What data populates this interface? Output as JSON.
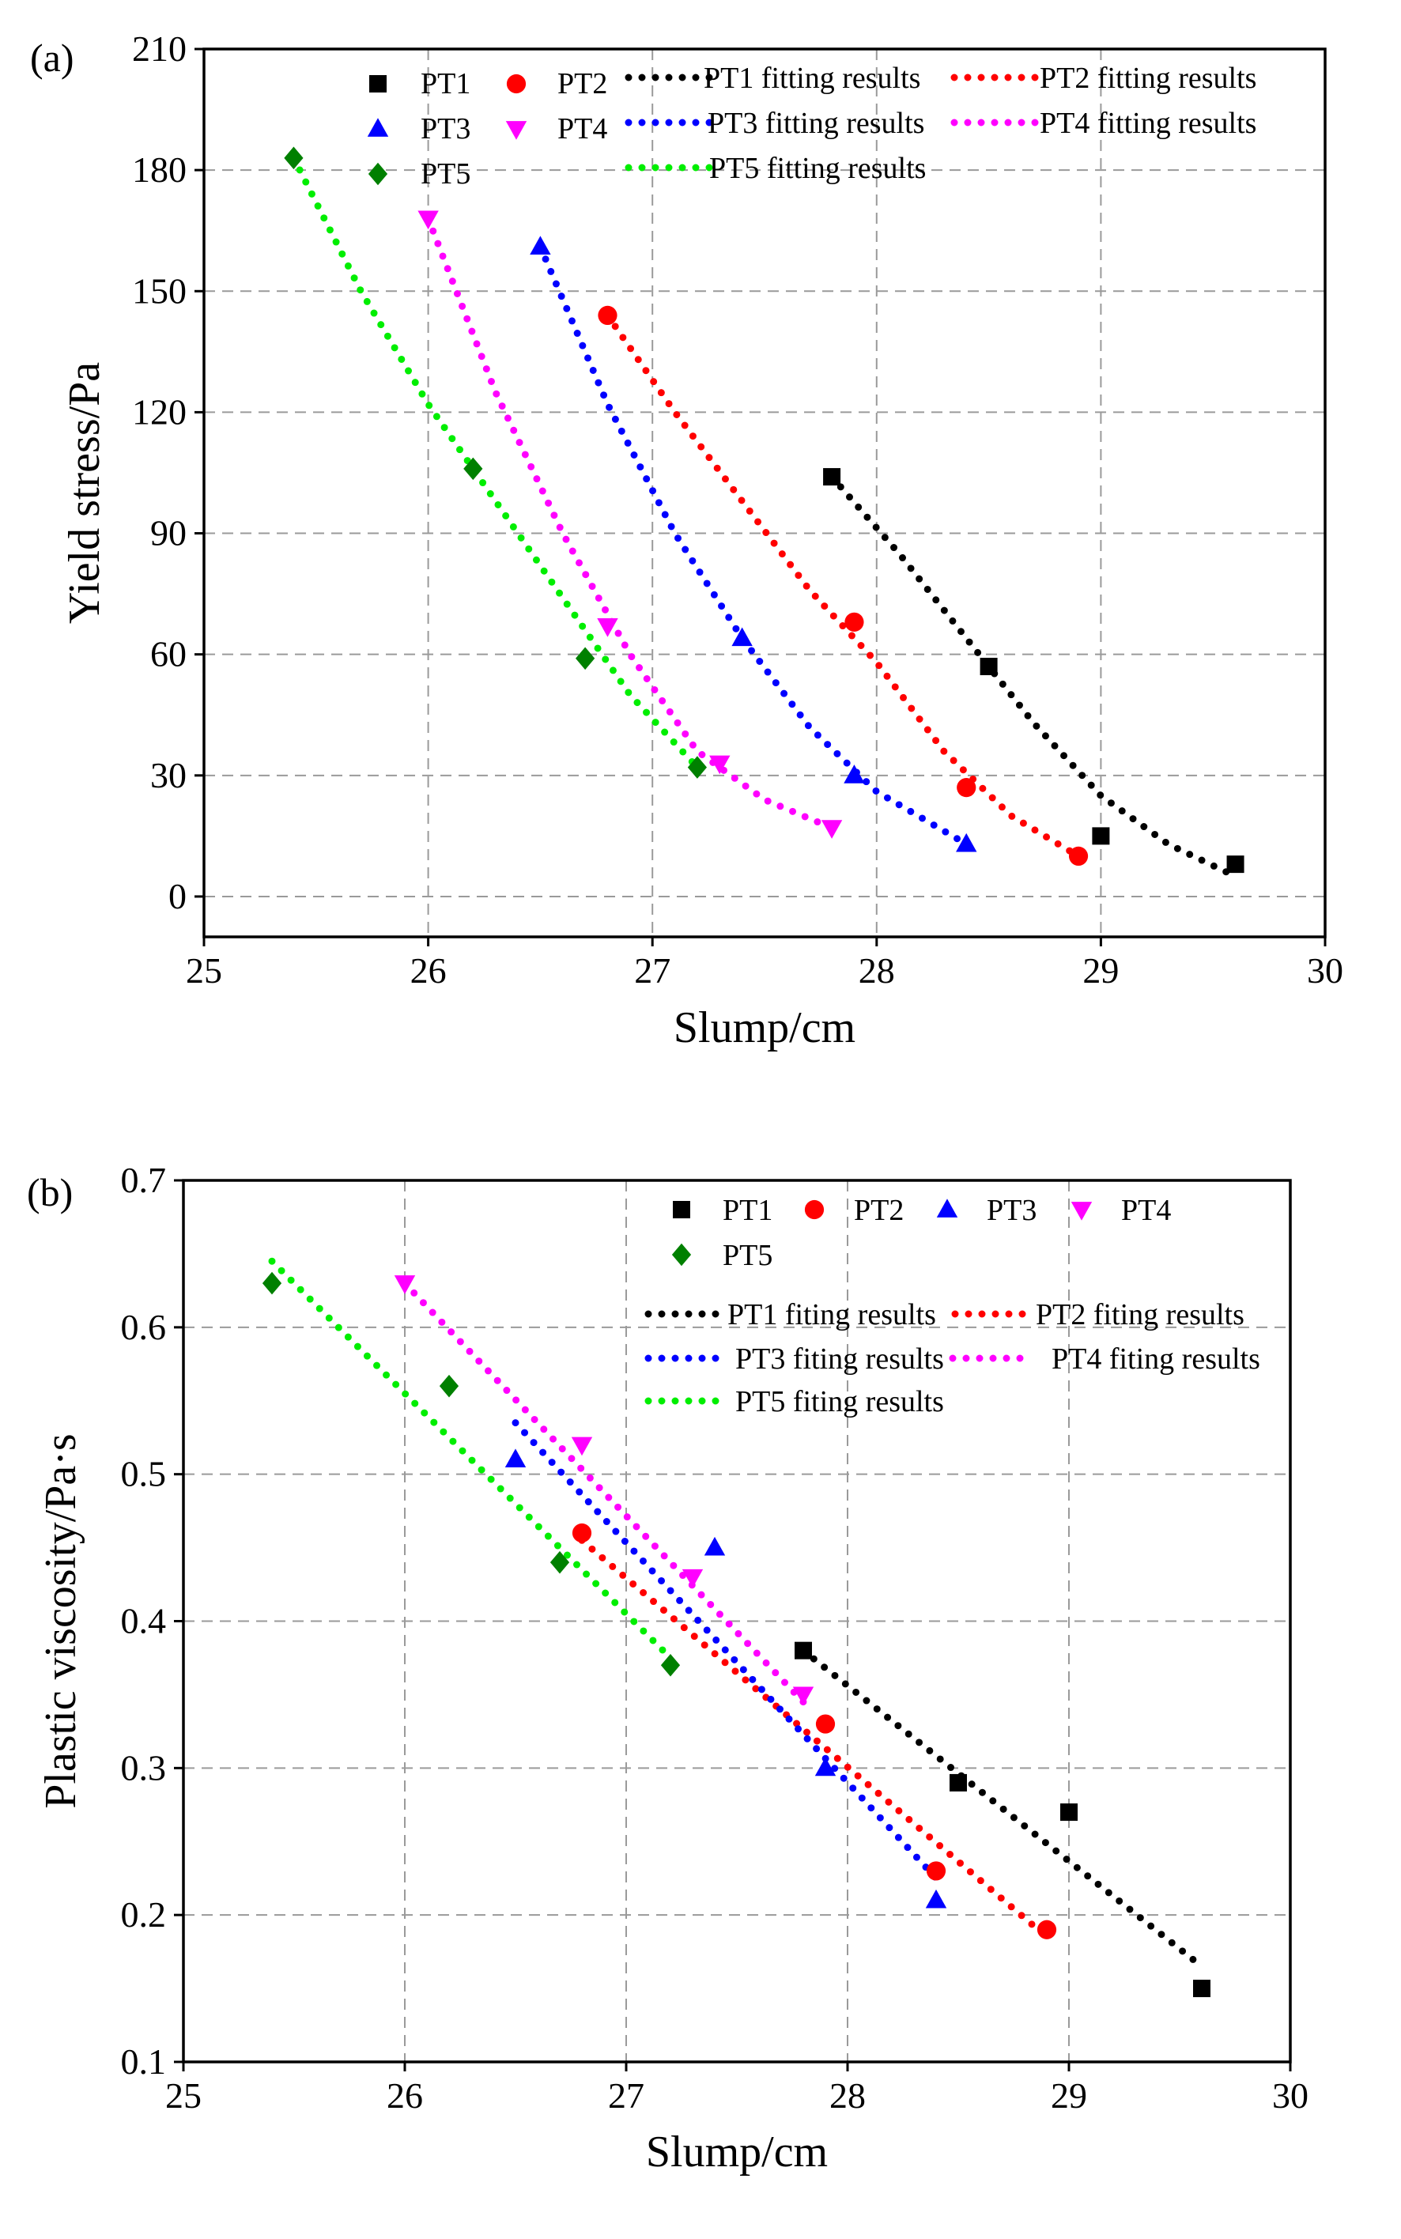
{
  "chart_data": [
    {
      "type": "scatter",
      "panel_label": "(a)",
      "xlabel": "Slump/cm",
      "ylabel": "Yield stress/Pa",
      "xlim": [
        25,
        30
      ],
      "ylim": [
        -10,
        210
      ],
      "xticks": [
        "25",
        "26",
        "27",
        "28",
        "29",
        "30"
      ],
      "yticks": [
        "0",
        "30",
        "60",
        "90",
        "120",
        "150",
        "180",
        "210"
      ],
      "grid": true,
      "series": [
        {
          "name": "PT1",
          "color": "#000000",
          "marker": "square",
          "x": [
            27.8,
            28.5,
            29.0,
            29.6
          ],
          "y": [
            104,
            57,
            15,
            8
          ]
        },
        {
          "name": "PT2",
          "color": "#ff0000",
          "marker": "circle",
          "x": [
            26.8,
            27.9,
            28.4,
            28.9
          ],
          "y": [
            144,
            68,
            27,
            10
          ]
        },
        {
          "name": "PT3",
          "color": "#0000ff",
          "marker": "triangle-up",
          "x": [
            26.5,
            27.4,
            27.9,
            28.4
          ],
          "y": [
            161,
            64,
            30,
            13
          ]
        },
        {
          "name": "PT4",
          "color": "#ff00ff",
          "marker": "triangle-down",
          "x": [
            26.0,
            26.8,
            27.3,
            27.8
          ],
          "y": [
            168,
            67,
            33,
            17
          ]
        },
        {
          "name": "PT5",
          "color": "#008000",
          "marker": "diamond",
          "x": [
            25.4,
            26.2,
            26.7,
            27.2
          ],
          "y": [
            183,
            106,
            59,
            32
          ]
        }
      ],
      "fits": [
        {
          "name": "PT1 fitting results",
          "color": "#000000",
          "x": [
            27.8,
            28.1,
            28.4,
            28.7,
            29.0,
            29.3,
            29.6
          ],
          "y": [
            104,
            85,
            64,
            43,
            25,
            13,
            5
          ]
        },
        {
          "name": "PT2 fitting results",
          "color": "#ff0000",
          "x": [
            26.8,
            27.1,
            27.4,
            27.7,
            28.0,
            28.3,
            28.6,
            28.9
          ],
          "y": [
            144,
            120,
            98,
            76,
            58,
            36,
            20,
            10
          ]
        },
        {
          "name": "PT3 fitting results",
          "color": "#0000ff",
          "x": [
            26.5,
            26.8,
            27.1,
            27.4,
            27.7,
            28.0,
            28.4
          ],
          "y": [
            161,
            122,
            90,
            64,
            42,
            26,
            13
          ]
        },
        {
          "name": "PT4 fitting results",
          "color": "#ff00ff",
          "x": [
            26.0,
            26.3,
            26.6,
            26.9,
            27.2,
            27.5,
            27.8
          ],
          "y": [
            168,
            125,
            90,
            60,
            36,
            24,
            17
          ]
        },
        {
          "name": "PT5 fitting results",
          "color": "#00ee00",
          "x": [
            25.4,
            25.7,
            26.0,
            26.3,
            26.6,
            26.9,
            27.2
          ],
          "y": [
            183,
            150,
            122,
            98,
            74,
            50,
            32
          ]
        }
      ]
    },
    {
      "type": "scatter",
      "panel_label": "(b)",
      "xlabel": "Slump/cm",
      "ylabel": "Plastic viscosity/Pa·s",
      "xlim": [
        25,
        30
      ],
      "ylim": [
        0.1,
        0.7
      ],
      "xticks": [
        "25",
        "26",
        "27",
        "28",
        "29",
        "30"
      ],
      "yticks": [
        "0.1",
        "0.2",
        "0.3",
        "0.4",
        "0.5",
        "0.6",
        "0.7"
      ],
      "grid": true,
      "series": [
        {
          "name": "PT1",
          "color": "#000000",
          "marker": "square",
          "x": [
            27.8,
            28.5,
            29.0,
            29.6
          ],
          "y": [
            0.38,
            0.29,
            0.27,
            0.15
          ]
        },
        {
          "name": "PT2",
          "color": "#ff0000",
          "marker": "circle",
          "x": [
            26.8,
            27.9,
            28.4,
            28.9
          ],
          "y": [
            0.46,
            0.33,
            0.23,
            0.19
          ]
        },
        {
          "name": "PT3",
          "color": "#0000ff",
          "marker": "triangle-up",
          "x": [
            26.5,
            27.4,
            27.9,
            28.4
          ],
          "y": [
            0.51,
            0.45,
            0.3,
            0.21
          ]
        },
        {
          "name": "PT4",
          "color": "#ff00ff",
          "marker": "triangle-down",
          "x": [
            26.0,
            26.8,
            27.3,
            27.8
          ],
          "y": [
            0.63,
            0.52,
            0.43,
            0.35
          ]
        },
        {
          "name": "PT5",
          "color": "#008000",
          "marker": "diamond",
          "x": [
            25.4,
            26.2,
            26.7,
            27.2
          ],
          "y": [
            0.63,
            0.56,
            0.44,
            0.37
          ]
        }
      ],
      "fits": [
        {
          "name": "PT1 fiting results",
          "color": "#000000",
          "x": [
            27.8,
            29.6
          ],
          "y": [
            0.38,
            0.165
          ]
        },
        {
          "name": "PT2 fiting results",
          "color": "#ff0000",
          "x": [
            26.8,
            28.9
          ],
          "y": [
            0.455,
            0.185
          ]
        },
        {
          "name": "PT3 fiting results",
          "color": "#0000ff",
          "x": [
            26.5,
            28.4
          ],
          "y": [
            0.535,
            0.225
          ]
        },
        {
          "name": "PT4 fiting results",
          "color": "#ff00ff",
          "x": [
            26.0,
            27.8
          ],
          "y": [
            0.63,
            0.345
          ]
        },
        {
          "name": "PT5 fiting results",
          "color": "#00ee00",
          "x": [
            25.4,
            27.2
          ],
          "y": [
            0.645,
            0.375
          ]
        }
      ]
    }
  ]
}
